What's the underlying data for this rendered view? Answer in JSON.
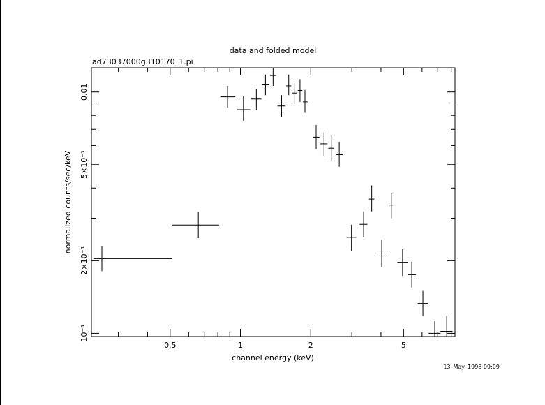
{
  "chart_data": {
    "type": "scatter",
    "title": "data and folded model",
    "subtitle": "ad73037000g310170_1.pi",
    "xlabel": "channel energy (keV)",
    "ylabel": "normalized counts/sec/keV",
    "x_scale": "log",
    "y_scale": "log",
    "xlim": [
      0.23,
      8.3
    ],
    "ylim": [
      0.00097,
      0.0126
    ],
    "grid": false,
    "legend": "none",
    "x_ticks": [
      {
        "value": 0.5,
        "label": "0.5"
      },
      {
        "value": 1,
        "label": "1"
      },
      {
        "value": 2,
        "label": "2"
      },
      {
        "value": 5,
        "label": "5"
      }
    ],
    "y_ticks": [
      {
        "value": 0.001,
        "label": "10⁻³"
      },
      {
        "value": 0.002,
        "label": "2×10⁻³"
      },
      {
        "value": 0.005,
        "label": "5×10⁻³"
      },
      {
        "value": 0.01,
        "label": "0.01"
      }
    ],
    "points": [
      {
        "x": 0.255,
        "xlo": 0.235,
        "xhi": 0.51,
        "y": 0.00204,
        "ylo": 0.00181,
        "yhi": 0.0023
      },
      {
        "x": 0.66,
        "xlo": 0.51,
        "xhi": 0.81,
        "y": 0.00281,
        "ylo": 0.00248,
        "yhi": 0.00318
      },
      {
        "x": 0.88,
        "xlo": 0.82,
        "xhi": 0.95,
        "y": 0.00955,
        "ylo": 0.0086,
        "yhi": 0.0106
      },
      {
        "x": 1.03,
        "xlo": 0.97,
        "xhi": 1.1,
        "y": 0.00845,
        "ylo": 0.0076,
        "yhi": 0.0096
      },
      {
        "x": 1.17,
        "xlo": 1.11,
        "xhi": 1.23,
        "y": 0.00935,
        "ylo": 0.0084,
        "yhi": 0.0103
      },
      {
        "x": 1.28,
        "xlo": 1.24,
        "xhi": 1.33,
        "y": 0.0107,
        "ylo": 0.0097,
        "yhi": 0.0118
      },
      {
        "x": 1.38,
        "xlo": 1.34,
        "xhi": 1.42,
        "y": 0.0117,
        "ylo": 0.0106,
        "yhi": 0.0126
      },
      {
        "x": 1.5,
        "xlo": 1.44,
        "xhi": 1.56,
        "y": 0.00875,
        "ylo": 0.0079,
        "yhi": 0.0097
      },
      {
        "x": 1.61,
        "xlo": 1.57,
        "xhi": 1.65,
        "y": 0.0106,
        "ylo": 0.0097,
        "yhi": 0.0118
      },
      {
        "x": 1.7,
        "xlo": 1.66,
        "xhi": 1.74,
        "y": 0.0099,
        "ylo": 0.0089,
        "yhi": 0.0109
      },
      {
        "x": 1.8,
        "xlo": 1.76,
        "xhi": 1.84,
        "y": 0.01015,
        "ylo": 0.0091,
        "yhi": 0.0113
      },
      {
        "x": 1.89,
        "xlo": 1.85,
        "xhi": 1.94,
        "y": 0.0091,
        "ylo": 0.0082,
        "yhi": 0.0102
      },
      {
        "x": 2.11,
        "xlo": 2.05,
        "xhi": 2.18,
        "y": 0.0065,
        "ylo": 0.0058,
        "yhi": 0.0073
      },
      {
        "x": 2.28,
        "xlo": 2.2,
        "xhi": 2.36,
        "y": 0.0061,
        "ylo": 0.0054,
        "yhi": 0.0068
      },
      {
        "x": 2.45,
        "xlo": 2.38,
        "xhi": 2.52,
        "y": 0.00585,
        "ylo": 0.0052,
        "yhi": 0.0066
      },
      {
        "x": 2.65,
        "xlo": 2.57,
        "xhi": 2.74,
        "y": 0.0055,
        "ylo": 0.0049,
        "yhi": 0.0062
      },
      {
        "x": 2.99,
        "xlo": 2.85,
        "xhi": 3.13,
        "y": 0.0025,
        "ylo": 0.00219,
        "yhi": 0.00282
      },
      {
        "x": 3.37,
        "xlo": 3.24,
        "xhi": 3.5,
        "y": 0.00283,
        "ylo": 0.0025,
        "yhi": 0.0032
      },
      {
        "x": 3.65,
        "xlo": 3.55,
        "xhi": 3.75,
        "y": 0.0036,
        "ylo": 0.0032,
        "yhi": 0.0041
      },
      {
        "x": 4.03,
        "xlo": 3.85,
        "xhi": 4.2,
        "y": 0.00215,
        "ylo": 0.00188,
        "yhi": 0.00244
      },
      {
        "x": 4.43,
        "xlo": 4.34,
        "xhi": 4.52,
        "y": 0.0034,
        "ylo": 0.003,
        "yhi": 0.0038
      },
      {
        "x": 4.95,
        "xlo": 4.7,
        "xhi": 5.2,
        "y": 0.00197,
        "ylo": 0.00173,
        "yhi": 0.00223
      },
      {
        "x": 5.42,
        "xlo": 5.2,
        "xhi": 5.65,
        "y": 0.00175,
        "ylo": 0.00155,
        "yhi": 0.00198
      },
      {
        "x": 6.05,
        "xlo": 5.75,
        "xhi": 6.35,
        "y": 0.00133,
        "ylo": 0.00118,
        "yhi": 0.0015
      },
      {
        "x": 6.8,
        "xlo": 6.4,
        "xhi": 7.2,
        "y": 0.001,
        "ylo": 0.00097,
        "yhi": 0.00113
      },
      {
        "x": 7.65,
        "xlo": 7.2,
        "xhi": 8.1,
        "y": 0.00102,
        "ylo": 0.00097,
        "yhi": 0.00118
      }
    ],
    "timestamp": "13–May–1998 09:09"
  }
}
